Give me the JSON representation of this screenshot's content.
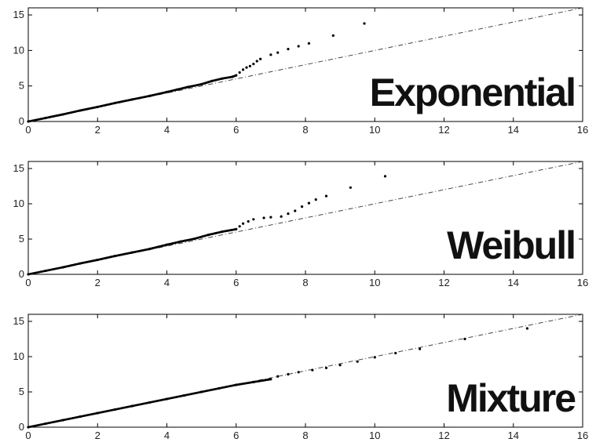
{
  "chart_data": [
    {
      "type": "scatter",
      "label": "Exponential",
      "xlim": [
        0,
        16
      ],
      "ylim": [
        0,
        16
      ],
      "xticks": [
        0,
        2,
        4,
        6,
        8,
        10,
        12,
        14,
        16
      ],
      "yticks": [
        0,
        5,
        10,
        15
      ],
      "reference_line": {
        "style": "dash-dot",
        "x": [
          0,
          16
        ],
        "y": [
          0,
          16
        ]
      },
      "points": [
        [
          0,
          0
        ],
        [
          0.5,
          0.5
        ],
        [
          1,
          1
        ],
        [
          1.5,
          1.55
        ],
        [
          2,
          2.05
        ],
        [
          2.5,
          2.6
        ],
        [
          3,
          3.1
        ],
        [
          3.5,
          3.6
        ],
        [
          4,
          4.15
        ],
        [
          4.3,
          4.5
        ],
        [
          4.6,
          4.85
        ],
        [
          5,
          5.25
        ],
        [
          5.3,
          5.7
        ],
        [
          5.6,
          6.05
        ],
        [
          5.9,
          6.3
        ],
        [
          6.0,
          6.5
        ],
        [
          6.1,
          6.9
        ],
        [
          6.2,
          7.3
        ],
        [
          6.3,
          7.6
        ],
        [
          6.4,
          7.8
        ],
        [
          6.5,
          8.1
        ],
        [
          6.6,
          8.5
        ],
        [
          6.7,
          8.8
        ],
        [
          7.0,
          9.4
        ],
        [
          7.2,
          9.7
        ],
        [
          7.5,
          10.2
        ],
        [
          7.8,
          10.6
        ],
        [
          8.1,
          11.0
        ],
        [
          8.8,
          12.1
        ],
        [
          9.7,
          13.8
        ]
      ]
    },
    {
      "type": "scatter",
      "label": "Weibull",
      "xlim": [
        0,
        16
      ],
      "ylim": [
        0,
        16
      ],
      "xticks": [
        0,
        2,
        4,
        6,
        8,
        10,
        12,
        14,
        16
      ],
      "yticks": [
        0,
        5,
        10,
        15
      ],
      "reference_line": {
        "style": "dash-dot",
        "x": [
          0,
          16
        ],
        "y": [
          0,
          16
        ]
      },
      "points": [
        [
          0,
          0
        ],
        [
          0.5,
          0.5
        ],
        [
          1,
          1
        ],
        [
          1.5,
          1.55
        ],
        [
          2,
          2.05
        ],
        [
          2.5,
          2.6
        ],
        [
          3,
          3.1
        ],
        [
          3.5,
          3.6
        ],
        [
          4,
          4.2
        ],
        [
          4.4,
          4.65
        ],
        [
          4.8,
          5.05
        ],
        [
          5.2,
          5.6
        ],
        [
          5.6,
          6.05
        ],
        [
          6.0,
          6.4
        ],
        [
          6.1,
          6.8
        ],
        [
          6.2,
          7.2
        ],
        [
          6.35,
          7.5
        ],
        [
          6.5,
          7.8
        ],
        [
          6.8,
          8.0
        ],
        [
          7.0,
          8.1
        ],
        [
          7.3,
          8.2
        ],
        [
          7.5,
          8.6
        ],
        [
          7.7,
          9.0
        ],
        [
          7.9,
          9.6
        ],
        [
          8.1,
          10.1
        ],
        [
          8.3,
          10.6
        ],
        [
          8.6,
          11.1
        ],
        [
          9.3,
          12.3
        ],
        [
          10.3,
          13.9
        ]
      ]
    },
    {
      "type": "scatter",
      "label": "Mixture",
      "xlim": [
        0,
        16
      ],
      "ylim": [
        0,
        16
      ],
      "xticks": [
        0,
        2,
        4,
        6,
        8,
        10,
        12,
        14,
        16
      ],
      "yticks": [
        0,
        5,
        10,
        15
      ],
      "reference_line": {
        "style": "dash-dot",
        "x": [
          0,
          16
        ],
        "y": [
          0,
          16
        ]
      },
      "points": [
        [
          0,
          0
        ],
        [
          0.5,
          0.5
        ],
        [
          1,
          1
        ],
        [
          1.5,
          1.5
        ],
        [
          2,
          2.0
        ],
        [
          2.5,
          2.5
        ],
        [
          3,
          3.0
        ],
        [
          3.5,
          3.5
        ],
        [
          4,
          4.0
        ],
        [
          4.5,
          4.5
        ],
        [
          5,
          5.0
        ],
        [
          5.5,
          5.5
        ],
        [
          6,
          6.0
        ],
        [
          6.5,
          6.4
        ],
        [
          7.0,
          6.8
        ],
        [
          7.2,
          7.2
        ],
        [
          7.5,
          7.5
        ],
        [
          7.8,
          7.8
        ],
        [
          8.2,
          8.1
        ],
        [
          8.6,
          8.4
        ],
        [
          9.0,
          8.8
        ],
        [
          9.5,
          9.3
        ],
        [
          10.0,
          9.9
        ],
        [
          10.6,
          10.5
        ],
        [
          11.3,
          11.1
        ],
        [
          12.6,
          12.5
        ],
        [
          14.4,
          14.0
        ]
      ]
    }
  ]
}
